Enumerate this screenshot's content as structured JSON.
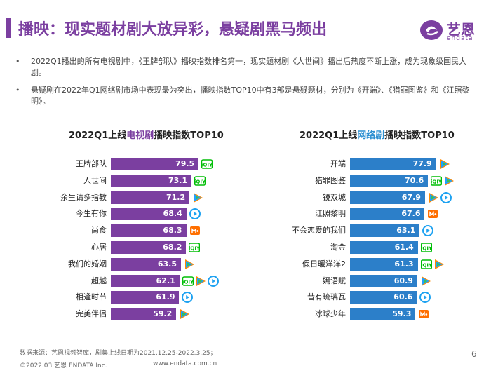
{
  "header": {
    "title": "播映：现实题材剧大放异彩，悬疑剧黑马频出",
    "logo_text": "艺恩",
    "logo_sub": "endata"
  },
  "bullets": [
    "2022Q1播出的所有电视剧中，《王牌部队》播映指数排名第一，现实题材剧《人世间》播出后热度不断上涨，成为现象级国民大剧。",
    "悬疑剧在2022年Q1网络剧市场中表现最为突出，播映指数TOP10中有3部是悬疑题材，分别为《开端》、《猎罪图鉴》和《江照黎明》。"
  ],
  "charts": {
    "tv": {
      "title_pre": "2022Q1上线",
      "title_hl": "电视剧",
      "title_post": "播映指数TOP10"
    },
    "net": {
      "title_pre": "2022Q1上线",
      "title_hl": "网络剧",
      "title_post": "播映指数TOP10"
    }
  },
  "chart_data": [
    {
      "type": "bar",
      "orientation": "horizontal",
      "title": "2022Q1上线电视剧播映指数TOP10",
      "color": "#7b3fa0",
      "categories": [
        "王牌部队",
        "人世间",
        "余生请多指教",
        "今生有你",
        "尚食",
        "心居",
        "我们的婚姻",
        "超越",
        "相逢时节",
        "完美伴侣"
      ],
      "values": [
        79.5,
        73.1,
        71.2,
        68.4,
        68.3,
        68.2,
        63.5,
        62.1,
        61.9,
        59.2
      ],
      "platforms": [
        [
          "iqiyi-icon"
        ],
        [
          "iqiyi-icon"
        ],
        [
          "tencent-icon"
        ],
        [
          "youku-icon"
        ],
        [
          "mgtv-icon"
        ],
        [
          "iqiyi-icon"
        ],
        [
          "tencent-icon"
        ],
        [
          "iqiyi-icon",
          "tencent-icon",
          "youku-icon"
        ],
        [
          "youku-icon"
        ],
        [
          "tencent-icon"
        ]
      ]
    },
    {
      "type": "bar",
      "orientation": "horizontal",
      "title": "2022Q1上线网络剧播映指数TOP10",
      "color": "#2c7fc9",
      "categories": [
        "开端",
        "猎罪图鉴",
        "镜双城",
        "江照黎明",
        "不会恋爱的我们",
        "淘金",
        "假日暖洋洋2",
        "嫣语赋",
        "昔有琉璃瓦",
        "冰球少年"
      ],
      "values": [
        77.9,
        70.6,
        67.9,
        67.6,
        63.1,
        61.4,
        61.3,
        60.9,
        60.6,
        59.3
      ],
      "platforms": [
        [
          "tencent-icon"
        ],
        [
          "iqiyi-icon",
          "tencent-icon"
        ],
        [
          "tencent-icon",
          "youku-icon"
        ],
        [
          "mgtv-icon"
        ],
        [
          "youku-icon"
        ],
        [
          "iqiyi-icon"
        ],
        [
          "iqiyi-icon",
          "tencent-icon"
        ],
        [
          "tencent-icon"
        ],
        [
          "youku-icon"
        ],
        [
          "mgtv-icon"
        ]
      ]
    }
  ],
  "colors": {
    "brand": "#7b3fa0",
    "net_bar": "#2c7fc9",
    "iqiyi": "#00be06",
    "tencent_a": "#ff8a00",
    "tencent_b": "#20a0ff",
    "tencent_c": "#3cc051",
    "youku": "#1ea2f1",
    "mgtv": "#ff6f00"
  },
  "footer": {
    "source": "数据来源：艺恩视频智库，剧集上线日期为2021.12.25-2022.3.25；",
    "copyright": "©2022.03 艺恩 ENDATA Inc.",
    "url": "www.endata.com.cn",
    "page": "6"
  }
}
